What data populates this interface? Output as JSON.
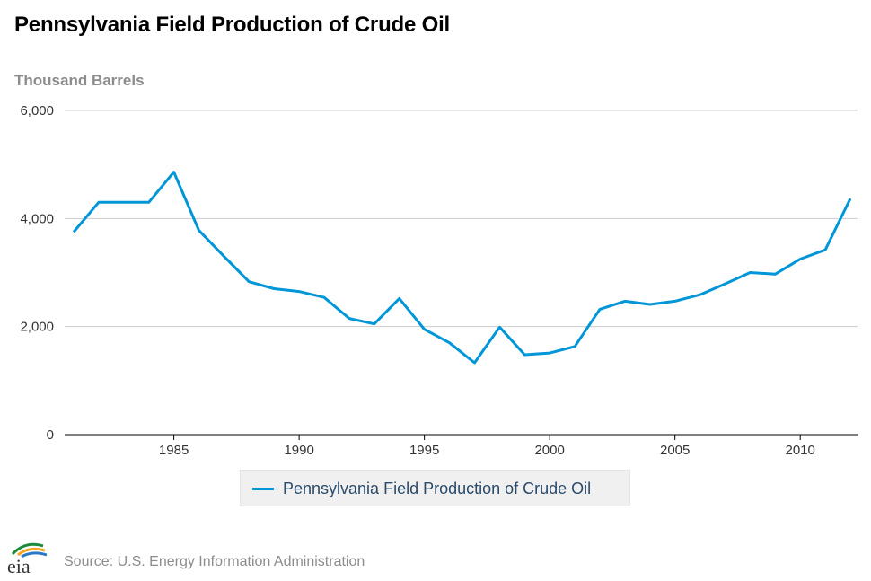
{
  "title": "Pennsylvania Field Production of Crude Oil",
  "y_unit": "Thousand Barrels",
  "source": "Source: U.S. Energy Information Administration",
  "logo_text": "eia",
  "colors": {
    "line": "#0096d7",
    "grid": "#cccccc",
    "axis": "#000000"
  },
  "chart_data": {
    "type": "line",
    "title": "Pennsylvania Field Production of Crude Oil",
    "ylabel": "Thousand Barrels",
    "xlabel": "",
    "ylim": [
      0,
      6000
    ],
    "xlim": [
      1981,
      2012
    ],
    "yticks": [
      0,
      2000,
      4000,
      6000
    ],
    "ytick_labels": [
      "0",
      "2,000",
      "4,000",
      "6,000"
    ],
    "xticks": [
      1985,
      1990,
      1995,
      2000,
      2005,
      2010
    ],
    "xtick_labels": [
      "1985",
      "1990",
      "1995",
      "2000",
      "2005",
      "2010"
    ],
    "grid": true,
    "legend": "bottom-center",
    "series": [
      {
        "name": "Pennsylvania Field Production of Crude Oil",
        "x": [
          1981,
          1982,
          1983,
          1984,
          1985,
          1986,
          1987,
          1988,
          1989,
          1990,
          1991,
          1992,
          1993,
          1994,
          1995,
          1996,
          1997,
          1998,
          1999,
          2000,
          2001,
          2002,
          2003,
          2004,
          2005,
          2006,
          2007,
          2008,
          2009,
          2010,
          2011,
          2012
        ],
        "values": [
          3750,
          4300,
          4300,
          4300,
          4860,
          3780,
          3300,
          2830,
          2700,
          2650,
          2540,
          2150,
          2050,
          2520,
          1950,
          1700,
          1330,
          1990,
          1480,
          1510,
          1630,
          2320,
          2470,
          2410,
          2470,
          2590,
          2790,
          3000,
          2970,
          3250,
          3420,
          4370
        ]
      }
    ]
  }
}
